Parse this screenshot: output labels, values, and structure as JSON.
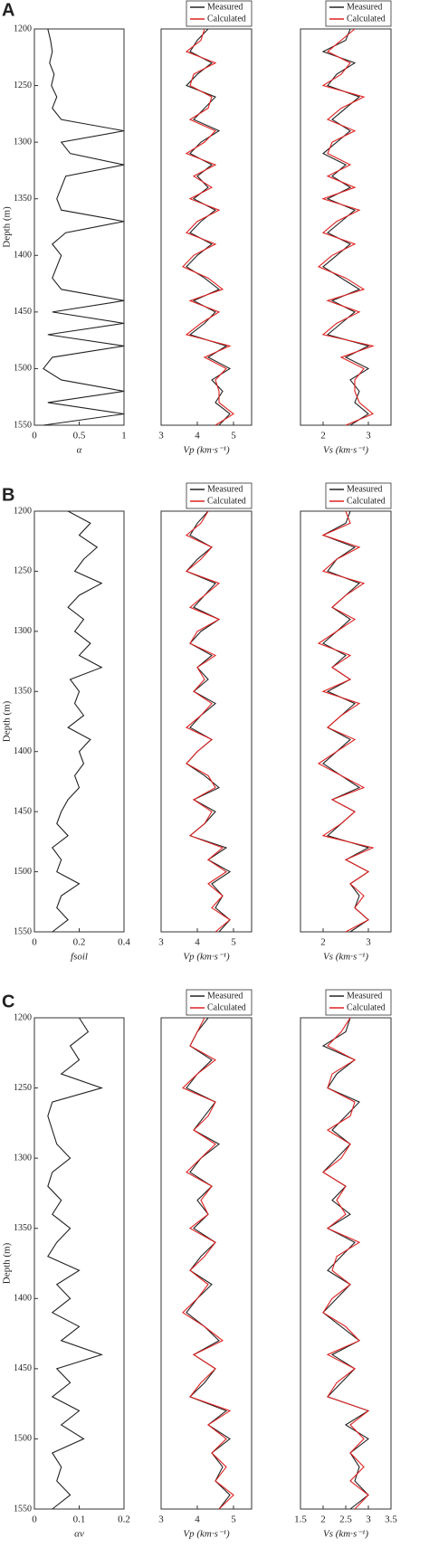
{
  "panel_labels": [
    "A",
    "B",
    "C"
  ],
  "chart_data": [
    {
      "type": "line",
      "xlabel": "α",
      "ylabel": "Depth (m)",
      "xlim": [
        0,
        1
      ],
      "xticks": [
        0,
        0.5,
        1
      ],
      "ylim": [
        1200,
        1550
      ],
      "yticks": [
        1200,
        1250,
        1300,
        1350,
        1400,
        1450,
        1500,
        1550
      ],
      "y_inverted": true,
      "y": [
        1200,
        1210,
        1220,
        1230,
        1240,
        1250,
        1260,
        1270,
        1280,
        1290,
        1300,
        1310,
        1320,
        1330,
        1340,
        1350,
        1360,
        1370,
        1380,
        1390,
        1400,
        1410,
        1420,
        1430,
        1440,
        1450,
        1460,
        1470,
        1480,
        1490,
        1500,
        1510,
        1520,
        1530,
        1540,
        1550
      ],
      "series": [
        {
          "color": "#222222",
          "values": [
            0.15,
            0.18,
            0.2,
            0.17,
            0.22,
            0.19,
            0.25,
            0.2,
            0.3,
            1,
            0.3,
            0.4,
            1,
            0.35,
            0.3,
            0.25,
            0.3,
            1,
            0.35,
            0.2,
            0.3,
            0.25,
            0.2,
            0.3,
            1,
            0.2,
            1,
            0.15,
            1,
            0.2,
            0.1,
            0.3,
            1,
            0.15,
            1,
            0.1
          ]
        }
      ]
    },
    {
      "type": "line",
      "xlabel": "Vp (km·s⁻¹)",
      "xlim": [
        3,
        5.5
      ],
      "xticks": [
        3,
        4,
        5
      ],
      "ylim": [
        1200,
        1550
      ],
      "y_inverted": true,
      "legend": "upper right",
      "y": [
        1200,
        1210,
        1220,
        1230,
        1240,
        1250,
        1260,
        1270,
        1280,
        1290,
        1300,
        1310,
        1320,
        1330,
        1340,
        1350,
        1360,
        1370,
        1380,
        1390,
        1400,
        1410,
        1420,
        1430,
        1440,
        1450,
        1460,
        1470,
        1480,
        1490,
        1500,
        1510,
        1520,
        1530,
        1540,
        1550
      ],
      "series": [
        {
          "name": "Measured",
          "color": "#222222",
          "values": [
            4.3,
            4.0,
            3.8,
            4.4,
            4.0,
            3.7,
            4.5,
            4.2,
            3.9,
            4.6,
            4.1,
            3.8,
            4.4,
            4.0,
            4.3,
            3.9,
            4.5,
            4.1,
            3.8,
            4.4,
            4.0,
            3.7,
            4.2,
            4.6,
            3.9,
            4.5,
            4.2,
            3.8,
            4.8,
            4.3,
            4.9,
            4.4,
            4.7,
            4.5,
            4.9,
            4.6
          ]
        },
        {
          "name": "Calculated",
          "color": "#e02020",
          "values": [
            4.2,
            4.1,
            3.7,
            4.5,
            3.9,
            3.8,
            4.4,
            4.3,
            3.8,
            4.5,
            4.2,
            3.7,
            4.5,
            3.9,
            4.4,
            3.8,
            4.6,
            4.0,
            3.7,
            4.5,
            3.9,
            3.6,
            4.3,
            4.7,
            3.8,
            4.6,
            4.1,
            3.7,
            4.9,
            4.2,
            4.8,
            4.5,
            4.6,
            4.6,
            5.0,
            4.5
          ]
        }
      ]
    },
    {
      "type": "line",
      "xlabel": "Vs (km·s⁻¹)",
      "xlim": [
        1.5,
        3.5
      ],
      "xticks": [
        2,
        3
      ],
      "ylim": [
        1200,
        1550
      ],
      "y_inverted": true,
      "legend": "upper right",
      "y": [
        1200,
        1210,
        1220,
        1230,
        1240,
        1250,
        1260,
        1270,
        1280,
        1290,
        1300,
        1310,
        1320,
        1330,
        1340,
        1350,
        1360,
        1370,
        1380,
        1390,
        1400,
        1410,
        1420,
        1430,
        1440,
        1450,
        1460,
        1470,
        1480,
        1490,
        1500,
        1510,
        1520,
        1530,
        1540,
        1550
      ],
      "series": [
        {
          "name": "Measured",
          "color": "#222222",
          "values": [
            2.6,
            2.5,
            2.0,
            2.7,
            2.3,
            2.1,
            2.8,
            2.5,
            2.2,
            2.6,
            2.3,
            2.0,
            2.5,
            2.2,
            2.6,
            2.1,
            2.7,
            2.4,
            2.1,
            2.6,
            2.3,
            2.0,
            2.4,
            2.8,
            2.2,
            2.7,
            2.4,
            2.1,
            3.0,
            2.5,
            3.0,
            2.6,
            2.8,
            2.7,
            3.0,
            2.6
          ]
        },
        {
          "name": "Calculated",
          "color": "#e02020",
          "values": [
            2.7,
            2.4,
            2.1,
            2.6,
            2.4,
            2.0,
            2.9,
            2.4,
            2.1,
            2.7,
            2.2,
            2.1,
            2.6,
            2.1,
            2.7,
            2.0,
            2.8,
            2.3,
            2.0,
            2.7,
            2.2,
            1.9,
            2.5,
            2.9,
            2.1,
            2.8,
            2.3,
            2.0,
            3.1,
            2.4,
            2.9,
            2.7,
            2.7,
            2.8,
            3.1,
            2.5
          ]
        }
      ]
    },
    {
      "type": "line",
      "xlabel": "fsoil",
      "ylabel": "Depth (m)",
      "xlim": [
        0,
        0.4
      ],
      "xticks": [
        0,
        0.2,
        0.4
      ],
      "ylim": [
        1200,
        1550
      ],
      "yticks": [
        1200,
        1250,
        1300,
        1350,
        1400,
        1450,
        1500,
        1550
      ],
      "y_inverted": true,
      "y": [
        1200,
        1210,
        1220,
        1230,
        1240,
        1250,
        1260,
        1270,
        1280,
        1290,
        1300,
        1310,
        1320,
        1330,
        1340,
        1350,
        1360,
        1370,
        1380,
        1390,
        1400,
        1410,
        1420,
        1430,
        1440,
        1450,
        1460,
        1470,
        1480,
        1490,
        1500,
        1510,
        1520,
        1530,
        1540,
        1550
      ],
      "series": [
        {
          "color": "#222222",
          "values": [
            0.15,
            0.25,
            0.2,
            0.28,
            0.22,
            0.18,
            0.3,
            0.2,
            0.15,
            0.22,
            0.18,
            0.25,
            0.2,
            0.3,
            0.16,
            0.2,
            0.18,
            0.22,
            0.15,
            0.25,
            0.2,
            0.22,
            0.18,
            0.2,
            0.15,
            0.12,
            0.1,
            0.15,
            0.08,
            0.12,
            0.1,
            0.2,
            0.12,
            0.1,
            0.15,
            0.08
          ]
        }
      ]
    },
    {
      "type": "line",
      "xlabel": "Vp (km·s⁻¹)",
      "xlim": [
        3,
        5.5
      ],
      "xticks": [
        3,
        4,
        5
      ],
      "ylim": [
        1200,
        1550
      ],
      "y_inverted": true,
      "legend": "upper right",
      "y": [
        1200,
        1210,
        1220,
        1230,
        1240,
        1250,
        1260,
        1270,
        1280,
        1290,
        1300,
        1310,
        1320,
        1330,
        1340,
        1350,
        1360,
        1370,
        1380,
        1390,
        1400,
        1410,
        1420,
        1430,
        1440,
        1450,
        1460,
        1470,
        1480,
        1490,
        1500,
        1510,
        1520,
        1530,
        1540,
        1550
      ],
      "series": [
        {
          "name": "Measured",
          "color": "#222222",
          "values": [
            4.3,
            4.0,
            3.8,
            4.4,
            4.0,
            3.7,
            4.5,
            4.2,
            3.9,
            4.6,
            4.1,
            3.8,
            4.4,
            4.0,
            4.3,
            3.9,
            4.5,
            4.1,
            3.8,
            4.4,
            4.0,
            3.7,
            4.2,
            4.6,
            3.9,
            4.5,
            4.2,
            3.8,
            4.8,
            4.3,
            4.9,
            4.4,
            4.7,
            4.5,
            4.9,
            4.6
          ]
        },
        {
          "name": "Calculated",
          "color": "#e02020",
          "values": [
            4.3,
            4.1,
            3.7,
            4.4,
            4.1,
            3.7,
            4.6,
            4.2,
            3.8,
            4.6,
            4.0,
            3.8,
            4.5,
            4.0,
            4.2,
            3.9,
            4.4,
            4.1,
            3.7,
            4.4,
            4.0,
            3.7,
            4.3,
            4.5,
            3.9,
            4.4,
            4.2,
            3.8,
            4.7,
            4.3,
            4.8,
            4.3,
            4.7,
            4.4,
            4.9,
            4.5
          ]
        }
      ]
    },
    {
      "type": "line",
      "xlabel": "Vs (km·s⁻¹)",
      "xlim": [
        1.5,
        3.5
      ],
      "xticks": [
        2,
        3
      ],
      "ylim": [
        1200,
        1550
      ],
      "y_inverted": true,
      "legend": "upper right",
      "y": [
        1200,
        1210,
        1220,
        1230,
        1240,
        1250,
        1260,
        1270,
        1280,
        1290,
        1300,
        1310,
        1320,
        1330,
        1340,
        1350,
        1360,
        1370,
        1380,
        1390,
        1400,
        1410,
        1420,
        1430,
        1440,
        1450,
        1460,
        1470,
        1480,
        1490,
        1500,
        1510,
        1520,
        1530,
        1540,
        1550
      ],
      "series": [
        {
          "name": "Measured",
          "color": "#222222",
          "values": [
            2.6,
            2.5,
            2.0,
            2.7,
            2.3,
            2.1,
            2.8,
            2.5,
            2.2,
            2.6,
            2.3,
            2.0,
            2.5,
            2.2,
            2.6,
            2.1,
            2.7,
            2.4,
            2.1,
            2.6,
            2.3,
            2.0,
            2.4,
            2.8,
            2.2,
            2.7,
            2.4,
            2.1,
            3.0,
            2.5,
            3.0,
            2.6,
            2.8,
            2.7,
            3.0,
            2.6
          ]
        },
        {
          "name": "Calculated",
          "color": "#e02020",
          "values": [
            2.5,
            2.6,
            2.0,
            2.8,
            2.3,
            2.0,
            2.9,
            2.5,
            2.2,
            2.7,
            2.3,
            1.9,
            2.6,
            2.2,
            2.6,
            2.0,
            2.8,
            2.4,
            2.1,
            2.7,
            2.3,
            1.9,
            2.4,
            2.9,
            2.2,
            2.7,
            2.4,
            2.0,
            3.1,
            2.5,
            3.0,
            2.6,
            2.9,
            2.7,
            3.0,
            2.5
          ]
        }
      ]
    },
    {
      "type": "line",
      "xlabel": "αv",
      "ylabel": "Depth (m)",
      "xlim": [
        0,
        0.2
      ],
      "xticks": [
        0,
        0.1,
        0.2
      ],
      "ylim": [
        1200,
        1550
      ],
      "yticks": [
        1200,
        1250,
        1300,
        1350,
        1400,
        1450,
        1500,
        1550
      ],
      "y_inverted": true,
      "y": [
        1200,
        1210,
        1220,
        1230,
        1240,
        1250,
        1260,
        1270,
        1280,
        1290,
        1300,
        1310,
        1320,
        1330,
        1340,
        1350,
        1360,
        1370,
        1380,
        1390,
        1400,
        1410,
        1420,
        1430,
        1440,
        1450,
        1460,
        1470,
        1480,
        1490,
        1500,
        1510,
        1520,
        1530,
        1540,
        1550
      ],
      "series": [
        {
          "color": "#222222",
          "values": [
            0.1,
            0.12,
            0.08,
            0.1,
            0.06,
            0.15,
            0.04,
            0.03,
            0.04,
            0.05,
            0.08,
            0.04,
            0.03,
            0.06,
            0.04,
            0.08,
            0.05,
            0.03,
            0.1,
            0.05,
            0.08,
            0.04,
            0.1,
            0.06,
            0.15,
            0.05,
            0.08,
            0.04,
            0.1,
            0.06,
            0.11,
            0.04,
            0.06,
            0.05,
            0.08,
            0.04
          ]
        }
      ]
    },
    {
      "type": "line",
      "xlabel": "Vp (km·s⁻¹)",
      "xlim": [
        3,
        5.5
      ],
      "xticks": [
        3,
        4,
        5
      ],
      "ylim": [
        1200,
        1550
      ],
      "y_inverted": true,
      "legend": "upper right",
      "y": [
        1200,
        1210,
        1220,
        1230,
        1240,
        1250,
        1260,
        1270,
        1280,
        1290,
        1300,
        1310,
        1320,
        1330,
        1340,
        1350,
        1360,
        1370,
        1380,
        1390,
        1400,
        1410,
        1420,
        1430,
        1440,
        1450,
        1460,
        1470,
        1480,
        1490,
        1500,
        1510,
        1520,
        1530,
        1540,
        1550
      ],
      "series": [
        {
          "name": "Measured",
          "color": "#222222",
          "values": [
            4.3,
            4.0,
            3.8,
            4.4,
            4.0,
            3.7,
            4.5,
            4.2,
            3.9,
            4.6,
            4.1,
            3.8,
            4.4,
            4.0,
            4.3,
            3.9,
            4.5,
            4.1,
            3.8,
            4.4,
            4.0,
            3.7,
            4.2,
            4.6,
            3.9,
            4.5,
            4.2,
            3.8,
            4.8,
            4.3,
            4.9,
            4.4,
            4.7,
            4.5,
            4.9,
            4.6
          ]
        },
        {
          "name": "Calculated",
          "color": "#e02020",
          "values": [
            4.2,
            4.0,
            3.8,
            4.5,
            4.0,
            3.6,
            4.5,
            4.3,
            3.9,
            4.5,
            4.1,
            3.7,
            4.4,
            4.1,
            4.3,
            3.8,
            4.5,
            4.2,
            3.8,
            4.3,
            4.0,
            3.6,
            4.2,
            4.7,
            3.9,
            4.5,
            4.1,
            3.8,
            4.9,
            4.3,
            4.8,
            4.4,
            4.8,
            4.5,
            5.0,
            4.6
          ]
        }
      ]
    },
    {
      "type": "line",
      "xlabel": "Vs (km·s⁻¹)",
      "xlim": [
        1.5,
        3.5
      ],
      "xticks": [
        1.5,
        2,
        2.5,
        3,
        3.5
      ],
      "ylim": [
        1200,
        1550
      ],
      "y_inverted": true,
      "legend": "upper right",
      "y": [
        1200,
        1210,
        1220,
        1230,
        1240,
        1250,
        1260,
        1270,
        1280,
        1290,
        1300,
        1310,
        1320,
        1330,
        1340,
        1350,
        1360,
        1370,
        1380,
        1390,
        1400,
        1410,
        1420,
        1430,
        1440,
        1450,
        1460,
        1470,
        1480,
        1490,
        1500,
        1510,
        1520,
        1530,
        1540,
        1550
      ],
      "series": [
        {
          "name": "Measured",
          "color": "#222222",
          "values": [
            2.6,
            2.5,
            2.0,
            2.7,
            2.3,
            2.1,
            2.8,
            2.5,
            2.2,
            2.6,
            2.3,
            2.0,
            2.5,
            2.2,
            2.6,
            2.1,
            2.7,
            2.4,
            2.1,
            2.6,
            2.3,
            2.0,
            2.4,
            2.8,
            2.2,
            2.7,
            2.4,
            2.1,
            3.0,
            2.5,
            3.0,
            2.6,
            2.8,
            2.7,
            3.0,
            2.6
          ]
        },
        {
          "name": "Calculated",
          "color": "#e02020",
          "values": [
            2.6,
            2.4,
            2.1,
            2.7,
            2.2,
            2.1,
            2.7,
            2.6,
            2.1,
            2.6,
            2.4,
            2.0,
            2.5,
            2.3,
            2.5,
            2.1,
            2.8,
            2.3,
            2.2,
            2.6,
            2.2,
            2.0,
            2.5,
            2.8,
            2.1,
            2.7,
            2.3,
            2.1,
            3.0,
            2.6,
            2.9,
            2.6,
            2.9,
            2.6,
            3.0,
            2.7
          ]
        }
      ]
    }
  ]
}
